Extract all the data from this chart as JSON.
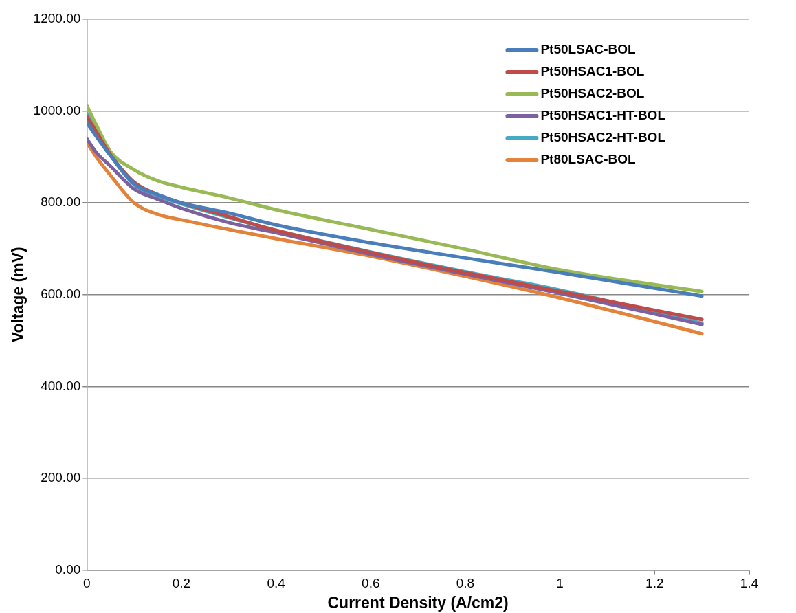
{
  "chart_data": {
    "type": "line",
    "xlabel": "Current Density (A/cm2)",
    "ylabel": "Voltage (mV)",
    "x": [
      0,
      0.02,
      0.05,
      0.1,
      0.15,
      0.2,
      0.3,
      0.4,
      0.6,
      0.8,
      1.0,
      1.3
    ],
    "series": [
      {
        "name": "Pt50LSAC-BOL",
        "color": "#4a7ebb",
        "values": [
          975,
          945,
          903,
          841,
          818,
          800,
          778,
          752,
          713,
          680,
          648,
          597
        ]
      },
      {
        "name": "Pt50HSAC1-BOL",
        "color": "#be4b48",
        "values": [
          988,
          955,
          905,
          845,
          818,
          800,
          770,
          740,
          692,
          648,
          607,
          546
        ]
      },
      {
        "name": "Pt50HSAC2-BOL",
        "color": "#98b954",
        "values": [
          1012,
          970,
          912,
          872,
          848,
          834,
          811,
          785,
          742,
          699,
          654,
          607
        ]
      },
      {
        "name": "Pt50HSAC1-HT-BOL",
        "color": "#7d60a0",
        "values": [
          940,
          910,
          880,
          830,
          808,
          788,
          757,
          735,
          688,
          645,
          603,
          535
        ]
      },
      {
        "name": "Pt50HSAC2-HT-BOL",
        "color": "#46aac5",
        "values": [
          995,
          960,
          905,
          840,
          815,
          798,
          768,
          740,
          693,
          650,
          610,
          538
        ]
      },
      {
        "name": "Pt80LSAC-BOL",
        "color": "#e3823a",
        "values": [
          932,
          900,
          860,
          800,
          775,
          763,
          742,
          722,
          684,
          640,
          593,
          515
        ]
      }
    ],
    "xlim": [
      0,
      1.4
    ],
    "xticks": [
      0,
      0.2,
      0.4,
      0.6,
      0.8,
      1,
      1.2,
      1.4
    ],
    "ylim": [
      0,
      1200
    ],
    "yticks": [
      {
        "value": 0,
        "label": "0.00"
      },
      {
        "value": 200,
        "label": "200.00"
      },
      {
        "value": 400,
        "label": "400.00"
      },
      {
        "value": 600,
        "label": "600.00"
      },
      {
        "value": 800,
        "label": "800.00"
      },
      {
        "value": 1000,
        "label": "1000.00"
      },
      {
        "value": 1200,
        "label": "1200.00"
      }
    ],
    "grid": "y",
    "legend": "top right",
    "marker": "none",
    "line_style": "solid"
  }
}
